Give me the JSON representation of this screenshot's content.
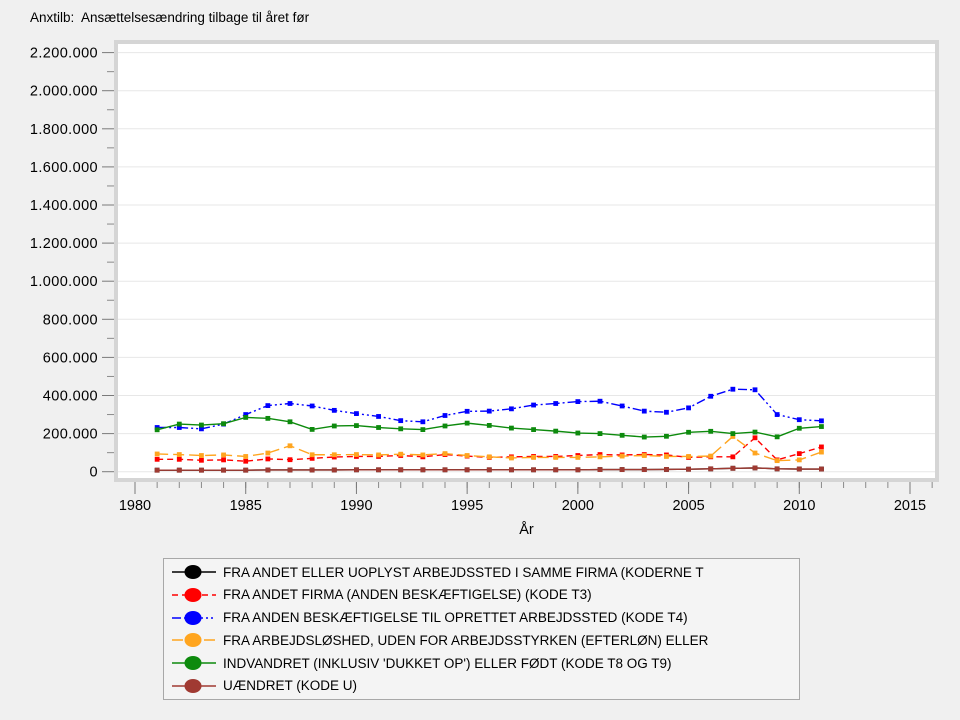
{
  "chart_data": {
    "type": "line",
    "title": "Anxtilb:  Ansættelsesændring tilbage til året før",
    "xlabel": "År",
    "ylabel": "",
    "xlim": [
      1979,
      2016
    ],
    "ylim": [
      0,
      2200000
    ],
    "grid": "horizontal-major",
    "legend_position": "bottom-center",
    "x": [
      1981,
      1982,
      1983,
      1984,
      1985,
      1986,
      1987,
      1988,
      1989,
      1990,
      1991,
      1992,
      1993,
      1994,
      1995,
      1996,
      1997,
      1998,
      1999,
      2000,
      2001,
      2002,
      2003,
      2004,
      2005,
      2006,
      2007,
      2008,
      2009,
      2010,
      2011
    ],
    "series": [
      {
        "name": "FRA ANDET ELLER UOPLYST ARBEJDSSTED I SAMME FIRMA (KODERNE T",
        "color": "#000000",
        "dash": "solid",
        "values": [
          8000,
          8000,
          8000,
          8000,
          8000,
          9000,
          9000,
          9000,
          9000,
          10000,
          10000,
          10000,
          10000,
          10000,
          10000,
          10000,
          10000,
          10000,
          10000,
          10000,
          11000,
          11000,
          11000,
          12000,
          13000,
          15000,
          18000,
          20000,
          15000,
          14000,
          14000
        ]
      },
      {
        "name": "FRA ANDET FIRMA (ANDEN BESKÆFTIGELSE) (KODE T3)",
        "color": "#ff0000",
        "dash": "dash",
        "values": [
          65000,
          65000,
          60000,
          62000,
          55000,
          67000,
          63000,
          70000,
          77000,
          80000,
          80000,
          85000,
          78000,
          90000,
          82000,
          75000,
          78000,
          80000,
          80000,
          85000,
          90000,
          88000,
          90000,
          88000,
          75000,
          78000,
          78000,
          178000,
          62000,
          95000,
          130000
        ]
      },
      {
        "name": "FRA ANDEN BESKÆFTIGELSE TIL OPRETTET ARBEJDSSTED (KODE T4)",
        "color": "#0000ff",
        "dash": "dashdot",
        "values": [
          232000,
          232000,
          225000,
          250000,
          300000,
          347000,
          358000,
          345000,
          322000,
          305000,
          290000,
          268000,
          262000,
          295000,
          317000,
          318000,
          330000,
          350000,
          358000,
          368000,
          370000,
          345000,
          318000,
          312000,
          335000,
          396000,
          433000,
          430000,
          300000,
          273000,
          267000
        ]
      },
      {
        "name": "FRA ARBEJDSLØSHED, UDEN FOR ARBEJDSSTYRKEN (EFTERLØN) ELLER",
        "color": "#ffa51f",
        "dash": "longdash",
        "values": [
          93000,
          90000,
          85000,
          88000,
          80000,
          98000,
          136000,
          89000,
          89000,
          90000,
          88000,
          92000,
          88000,
          95000,
          85000,
          78000,
          72000,
          75000,
          75000,
          75000,
          78000,
          82000,
          85000,
          80000,
          80000,
          82000,
          185000,
          98000,
          58000,
          62000,
          103000
        ]
      },
      {
        "name": "INDVANDRET (INKLUSIV 'DUKKET OP') ELLER FØDT (KODE T8 OG T9)",
        "color": "#0d8a0d",
        "dash": "solid",
        "values": [
          220000,
          250000,
          245000,
          252000,
          285000,
          280000,
          262000,
          222000,
          240000,
          242000,
          232000,
          225000,
          221000,
          240000,
          255000,
          243000,
          229000,
          221000,
          213000,
          203000,
          200000,
          191000,
          182000,
          186000,
          207000,
          212000,
          200000,
          208000,
          183000,
          228000,
          237000
        ]
      },
      {
        "name": "UÆNDRET (KODE U)",
        "color": "#a03a32",
        "dash": "solid",
        "values": [
          8000,
          8000,
          8000,
          8000,
          8000,
          9000,
          9000,
          9000,
          9000,
          10000,
          10000,
          10000,
          10000,
          10000,
          10000,
          10000,
          10000,
          10000,
          10000,
          10000,
          11000,
          11000,
          11000,
          12000,
          13000,
          15000,
          18000,
          20000,
          15000,
          14000,
          14000
        ]
      }
    ],
    "yticks": {
      "values": [
        0,
        200000,
        400000,
        600000,
        800000,
        1000000,
        1200000,
        1400000,
        1600000,
        1800000,
        2000000,
        2200000
      ],
      "labels": [
        "0",
        "200.000",
        "400.000",
        "600.000",
        "800.000",
        "1.000.000",
        "1.200.000",
        "1.400.000",
        "1.600.000",
        "1.800.000",
        "2.000.000",
        "2.200.000"
      ]
    },
    "xticks": {
      "values": [
        1980,
        1985,
        1990,
        1995,
        2000,
        2005,
        2010,
        2015
      ],
      "labels": [
        "1980",
        "1985",
        "1990",
        "1995",
        "2000",
        "2005",
        "2010",
        "2015"
      ]
    }
  }
}
